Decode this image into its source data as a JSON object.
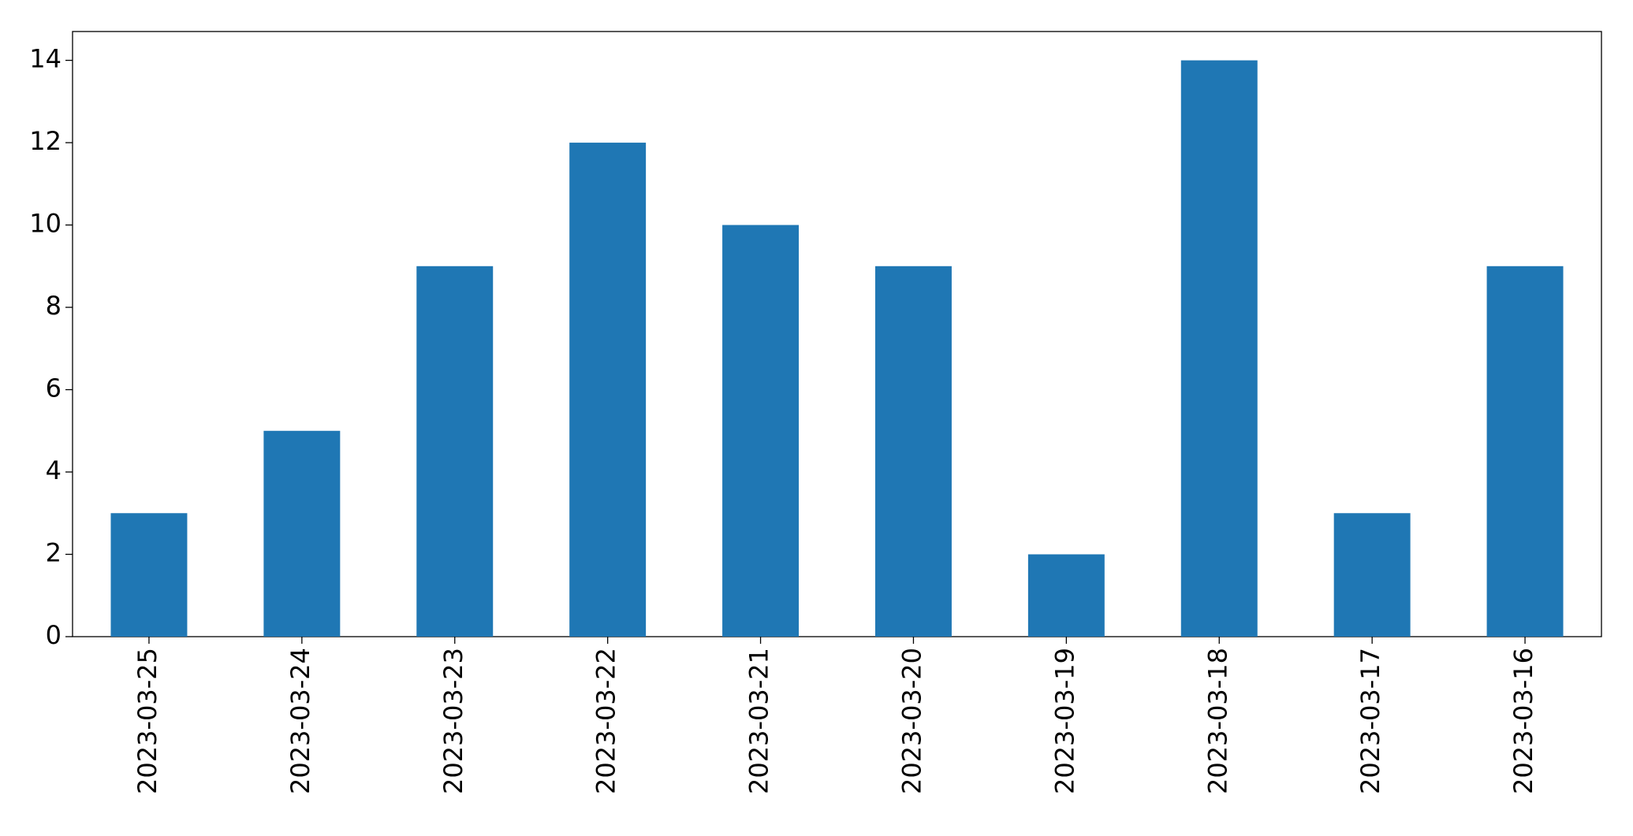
{
  "chart_data": {
    "type": "bar",
    "categories": [
      "2023-03-25",
      "2023-03-24",
      "2023-03-23",
      "2023-03-22",
      "2023-03-21",
      "2023-03-20",
      "2023-03-19",
      "2023-03-18",
      "2023-03-17",
      "2023-03-16"
    ],
    "values": [
      3,
      5,
      9,
      12,
      10,
      9,
      2,
      14,
      3,
      9
    ],
    "color": "#1f77b4",
    "ylim": [
      0,
      14.7
    ],
    "yticks": [
      0,
      2,
      4,
      6,
      8,
      10,
      12,
      14
    ],
    "grid": false
  }
}
